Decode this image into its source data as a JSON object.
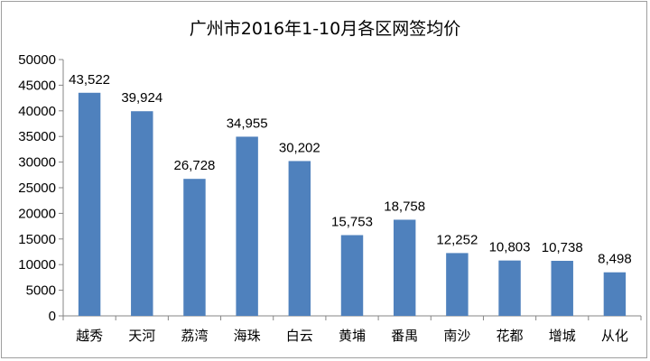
{
  "chart_data": {
    "type": "bar",
    "title": "广州市2016年1-10月各区网签均价",
    "categories": [
      "越秀",
      "天河",
      "荔湾",
      "海珠",
      "白云",
      "黄埔",
      "番禺",
      "南沙",
      "花都",
      "增城",
      "从化"
    ],
    "values": [
      43522,
      39924,
      26728,
      34955,
      30202,
      15753,
      18758,
      12252,
      10803,
      10738,
      8498
    ],
    "data_labels": [
      "43,522",
      "39,924",
      "26,728",
      "34,955",
      "30,202",
      "15,753",
      "18,758",
      "12,252",
      "10,803",
      "10,738",
      "8,498"
    ],
    "yticks": [
      "0",
      "5000",
      "10000",
      "15000",
      "20000",
      "25000",
      "30000",
      "35000",
      "40000",
      "45000",
      "50000"
    ],
    "ylim": [
      0,
      50000
    ],
    "xlabel": "",
    "ylabel": "",
    "grid": false,
    "legend": "none",
    "bar_color": "#4f81bd",
    "axis_color": "#868686"
  }
}
